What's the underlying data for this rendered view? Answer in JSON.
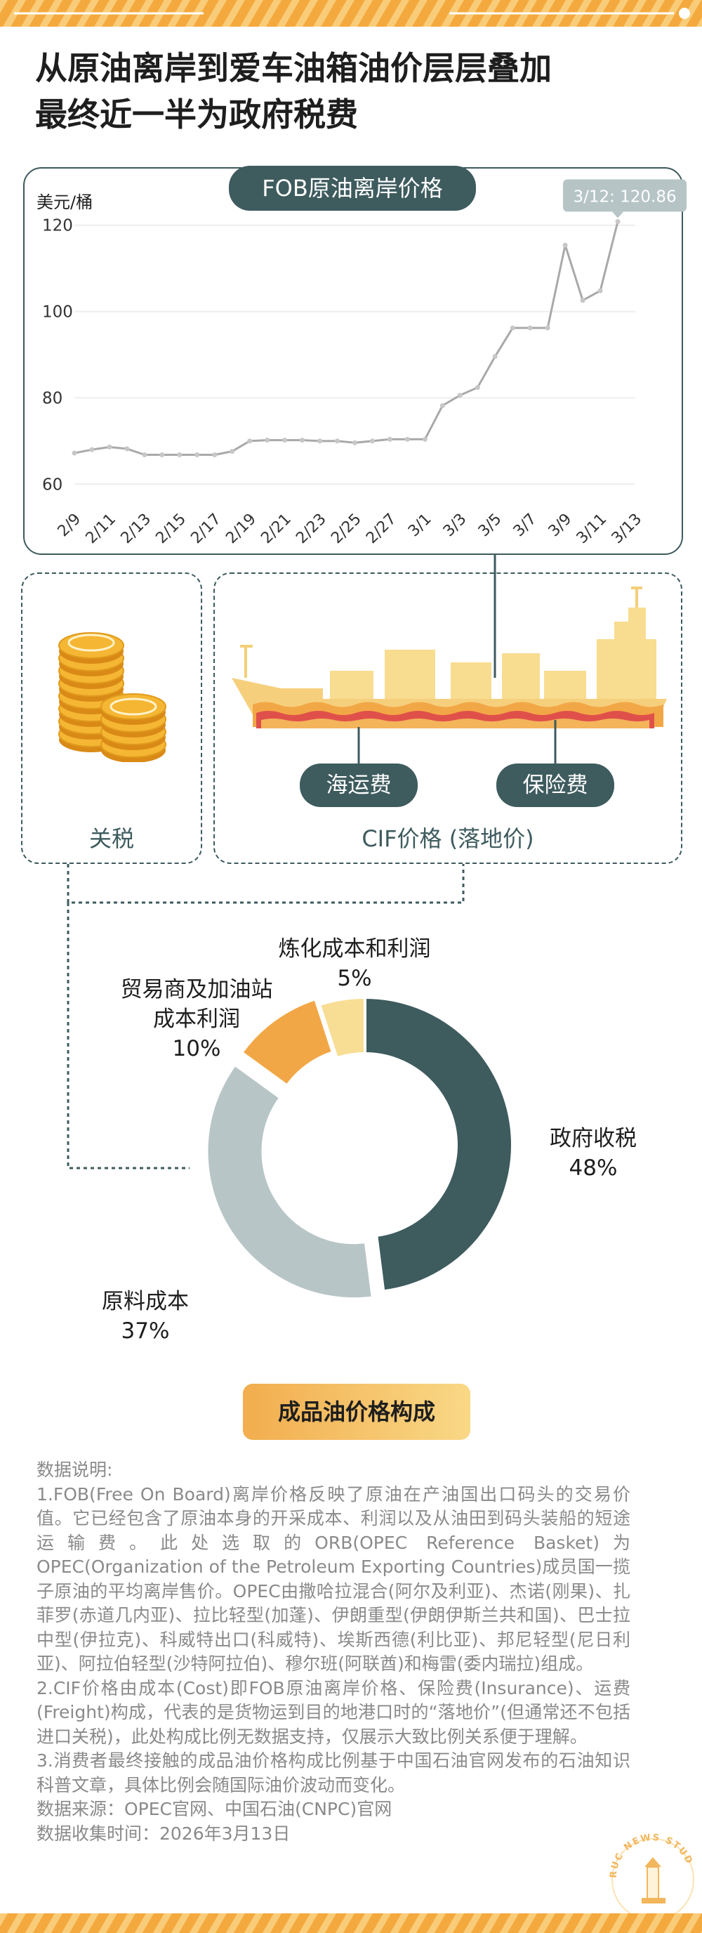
{
  "title_lines": [
    "从原油离岸到爱车油箱油价层层叠加",
    "最终近一半为政府税费"
  ],
  "fob_chart": {
    "title": "FOB原油离岸价格",
    "unit": "美元/桶",
    "callout": "3/12: 120.86",
    "line_color": "#a9a9a9",
    "point_color": "#c7c7c7",
    "grid_color": "#eeeeee"
  },
  "boxes": {
    "tariff_label": "关税",
    "cif_label": "CIF价格 (落地价)",
    "shipping_label": "海运费",
    "insurance_label": "保险费",
    "pill_color": "#3e5b5e"
  },
  "composition": {
    "button_label": "成品油价格构成",
    "labels": {
      "gov": {
        "name": "政府收税",
        "pct": "48%"
      },
      "raw": {
        "name": "原料成本",
        "pct": "37%"
      },
      "trade": {
        "line1": "贸易商及加油站",
        "line2": "成本利润",
        "pct": "10%"
      },
      "refine": {
        "name": "炼化成本和利润",
        "pct": "5%"
      }
    }
  },
  "notes": [
    "数据说明:",
    "1.FOB(Free On Board)离岸价格反映了原油在产油国出口码头的交易价值。它已经包含了原油本身的开采成本、利润以及从油田到码头装船的短途运输费。此处选取的ORB(OPEC Reference Basket)为OPEC(Organization of the Petroleum Exporting Countries)成员国一揽子原油的平均离岸售价。OPEC由撒哈拉混合(阿尔及利亚)、杰诺(刚果)、扎菲罗(赤道几内亚)、拉比轻型(加蓬)、伊朗重型(伊朗伊斯兰共和国)、巴士拉中型(伊拉克)、科威特出口(科威特)、埃斯西德(利比亚)、邦尼轻型(尼日利亚)、阿拉伯轻型(沙特阿拉伯)、穆尔班(阿联酋)和梅雷(委内瑞拉)组成。",
    "2.CIF价格由成本(Cost)即FOB原油离岸价格、保险费(Insurance)、运费(Freight)构成，代表的是货物运到目的地港口时的“落地价”(但通常还不包括进口关税)，此处构成比例无数据支持，仅展示大致比例关系便于理解。",
    "3.消费者最终接触的成品油价格构成比例基于中国石油官网发布的石油知识科普文章，具体比例会随国际油价波动而变化。",
    "数据来源：OPEC官网、中国石油(CNPC)官网",
    "数据收集时间：2026年3月13日"
  ],
  "stamp_text": "RUC NEWS STUDIO",
  "chart_data": [
    {
      "type": "line",
      "title": "FOB原油离岸价格",
      "ylabel": "美元/桶",
      "xlabel": "",
      "x_ticks": [
        "2/9",
        "2/11",
        "2/13",
        "2/15",
        "2/17",
        "2/19",
        "2/21",
        "2/23",
        "2/25",
        "2/27",
        "3/1",
        "3/3",
        "3/5",
        "3/7",
        "3/9",
        "3/11",
        "3/13"
      ],
      "y_ticks": [
        60,
        80,
        100,
        120
      ],
      "ylim": [
        55,
        125
      ],
      "xlim_days": [
        0,
        32
      ],
      "grid": true,
      "series": [
        {
          "x_day": [
            0,
            1,
            2,
            3,
            4,
            5,
            6,
            7,
            8,
            9,
            10,
            11,
            12,
            13,
            14,
            15,
            16,
            17,
            18,
            19,
            20,
            21,
            22,
            23,
            24,
            25,
            26,
            27,
            28,
            29,
            30,
            31
          ],
          "dates": [
            "2/9",
            "2/10",
            "2/11",
            "2/12",
            "2/13",
            "2/14",
            "2/15",
            "2/16",
            "2/17",
            "2/18",
            "2/19",
            "2/20",
            "2/21",
            "2/22",
            "2/23",
            "2/24",
            "2/25",
            "2/26",
            "2/27",
            "2/28",
            "3/1",
            "3/2",
            "3/3",
            "3/4",
            "3/5",
            "3/6",
            "3/7",
            "3/8",
            "3/9",
            "3/10",
            "3/11",
            "3/12"
          ],
          "values": [
            67.2,
            68.0,
            68.6,
            68.2,
            66.8,
            66.8,
            66.8,
            66.8,
            66.8,
            67.6,
            70.0,
            70.2,
            70.2,
            70.2,
            70.0,
            70.0,
            69.6,
            70.0,
            70.4,
            70.4,
            70.4,
            78.2,
            80.6,
            82.4,
            89.6,
            96.2,
            96.2,
            96.2,
            115.4,
            102.6,
            104.8,
            120.86
          ]
        }
      ],
      "annotation": "3/12: 120.86"
    },
    {
      "type": "pie",
      "title": "成品油价格构成",
      "categories": [
        "政府收税",
        "原料成本",
        "贸易商及加油站成本利润",
        "炼化成本和利润"
      ],
      "values": [
        48,
        37,
        10,
        5
      ],
      "colors": [
        "#3e5b5e",
        "#b8c5c7",
        "#f2a746",
        "#f8dd94"
      ]
    }
  ]
}
